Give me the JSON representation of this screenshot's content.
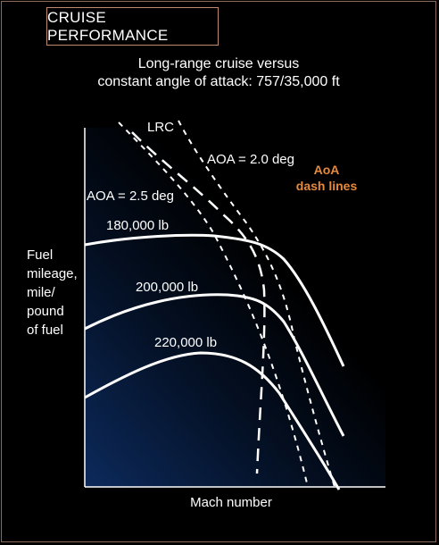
{
  "title": "CRUISE PERFORMANCE",
  "subtitle": [
    "Long-range cruise versus",
    "constant angle of attack: 757/35,000 ft"
  ],
  "ylabel": [
    "Fuel",
    "mileage,",
    "mile/",
    "pound",
    "of fuel"
  ],
  "xlabel": "Mach number",
  "labels": {
    "lrc": "LRC",
    "aoa20": "AOA = 2.0 deg",
    "aoa25": "AOA = 2.5 deg",
    "w180": "180,000 lb",
    "w200": "200,000 lb",
    "w220": "220,000 lb",
    "legend": [
      "AoA",
      "dash lines"
    ]
  },
  "colors": {
    "accent": "#e58a3c",
    "frame": "#8a6a5a",
    "gradient_dark": "#0c2a5c"
  }
}
